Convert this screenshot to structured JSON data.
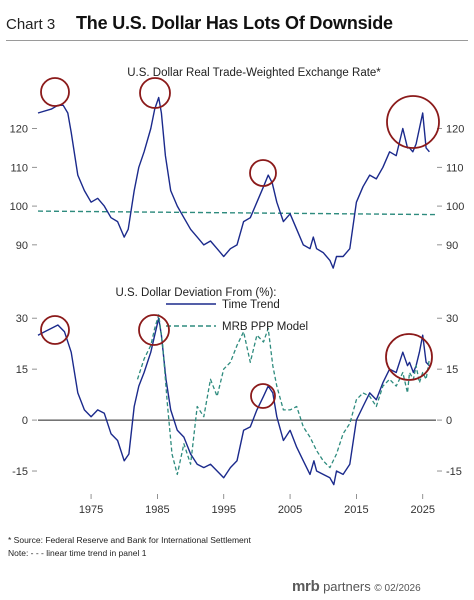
{
  "header": {
    "chart_number": "Chart 3",
    "title": "The U.S. Dollar Has Lots Of Downside"
  },
  "footer": {
    "source": "* Source: Federal Reserve and Bank for International Settlement",
    "note": "Note: - - - linear time trend in panel 1",
    "brand_main": "mrb",
    "brand_sub": "partners",
    "brand_date": "© 02/2026"
  },
  "colors": {
    "series_main": "#1b2a8c",
    "trend_teal": "#2e8b7e",
    "highlight_circle": "#8b1a1a",
    "zero_line": "#222222"
  },
  "chart_data": [
    {
      "type": "line",
      "title": "U.S. Dollar Real Trade-Weighted Exchange Rate*",
      "xlim": [
        1967,
        2027
      ],
      "ylim": [
        83,
        132
      ],
      "yticks": [
        90,
        100,
        110,
        120
      ],
      "y_tick_labels": [
        "90",
        "100",
        "110",
        "120"
      ],
      "legend": "none",
      "annotations": [
        "circle",
        "circle",
        "circle",
        "circle"
      ],
      "series": [
        {
          "x": [
            1967,
            1969,
            1970,
            1970.8,
            1971.5,
            1972,
            1973,
            1974,
            1975,
            1976,
            1977,
            1978,
            1979,
            1980,
            1980.6,
            1981.5,
            1982.2,
            1983,
            1984,
            1984.6,
            1985.2,
            1985.6,
            1986.2,
            1987,
            1988,
            1989,
            1990,
            1991,
            1992,
            1993,
            1994,
            1995,
            1996,
            1997,
            1998,
            1999,
            2000,
            2001,
            2001.7,
            2002.3,
            2003,
            2004,
            2005,
            2006,
            2007,
            2008,
            2008.5,
            2009,
            2010,
            2011,
            2011.5,
            2012,
            2013,
            2014,
            2015,
            2016,
            2017,
            2018,
            2019,
            2020,
            2021,
            2022,
            2022.7,
            2023,
            2023.5,
            2024,
            2024.5,
            2025,
            2025.5,
            2026
          ],
          "values": [
            124,
            125,
            126,
            126,
            124,
            119,
            108,
            104,
            101,
            102,
            100,
            97,
            96,
            92,
            94,
            104,
            110,
            114,
            120,
            125,
            128,
            124,
            113,
            104,
            100,
            97,
            94,
            92,
            90,
            91,
            89,
            87,
            89,
            90,
            96,
            97,
            101,
            105,
            108,
            106,
            101,
            96,
            98,
            94,
            90,
            89,
            92,
            89,
            88,
            86,
            84,
            87,
            87,
            89,
            101,
            105,
            108,
            107,
            110,
            114,
            113,
            120,
            115,
            115,
            114,
            116,
            120,
            124,
            115,
            114
          ]
        }
      ],
      "trend": {
        "x": [
          1967,
          2027
        ],
        "values": [
          98.7,
          97.8
        ]
      }
    },
    {
      "type": "line",
      "title": "U.S. Dollar Deviation From (%):",
      "xlim": [
        1967,
        2027
      ],
      "ylim": [
        -20,
        33
      ],
      "yticks": [
        -15,
        0,
        15,
        30
      ],
      "y_tick_labels": [
        "-15",
        "0",
        "15",
        "30"
      ],
      "x_tick_values": [
        1975,
        1985,
        1995,
        2005,
        2015,
        2025
      ],
      "x_tick_labels": [
        "1975",
        "1985",
        "1995",
        "2005",
        "2015",
        "2025"
      ],
      "legend": "top-right",
      "annotations": [
        "circle",
        "circle",
        "circle",
        "circle"
      ],
      "series": [
        {
          "name": "Time Trend",
          "x": [
            1967,
            1968,
            1969,
            1970,
            1971,
            1972,
            1973,
            1974,
            1975,
            1976,
            1977,
            1978,
            1979,
            1980,
            1980.7,
            1981.5,
            1982.2,
            1983,
            1984,
            1984.6,
            1985.2,
            1985.6,
            1986.3,
            1987,
            1988,
            1989,
            1990,
            1991,
            1992,
            1993,
            1994,
            1995,
            1996,
            1997,
            1998,
            1999,
            2000,
            2001,
            2001.7,
            2002.4,
            2003,
            2004,
            2005,
            2006,
            2007,
            2008,
            2008.6,
            2009,
            2010,
            2011,
            2011.6,
            2012,
            2013,
            2014,
            2015,
            2016,
            2017,
            2018,
            2019,
            2020,
            2021,
            2022,
            2022.7,
            2023,
            2023.6,
            2024,
            2024.5,
            2025,
            2025.5,
            2026
          ],
          "values": [
            25,
            26,
            27,
            28,
            26,
            20,
            8,
            3,
            1,
            3,
            2,
            -4,
            -6,
            -12,
            -10,
            4,
            10,
            14,
            20,
            25,
            30,
            25,
            12,
            3,
            -3,
            -5,
            -10,
            -13,
            -14,
            -13,
            -15,
            -17,
            -14,
            -12,
            -3,
            -2,
            3,
            7,
            10,
            8,
            1,
            -6,
            -3,
            -8,
            -12,
            -16,
            -12,
            -15,
            -16,
            -17,
            -19,
            -15,
            -16,
            -13,
            0,
            4,
            8,
            6,
            11,
            15,
            14,
            20,
            16,
            17,
            14,
            16,
            20,
            25,
            17,
            16
          ]
        },
        {
          "name": "MRB PPP Model",
          "x": [
            1982,
            1983,
            1984,
            1984.6,
            1985.2,
            1985.8,
            1986.5,
            1987.2,
            1988,
            1989,
            1990,
            1991,
            1992,
            1993,
            1994,
            1995,
            1996,
            1997,
            1998,
            1999,
            2000,
            2001,
            2001.7,
            2002.4,
            2003,
            2004,
            2005,
            2006,
            2007,
            2008,
            2009,
            2010,
            2011,
            2012,
            2013,
            2014,
            2015,
            2016,
            2017,
            2018,
            2019,
            2020,
            2021,
            2022,
            2022.7,
            2023,
            2023.6,
            2024,
            2024.5,
            2025,
            2025.5,
            2026
          ],
          "values": [
            12,
            18,
            22,
            27,
            31,
            22,
            5,
            -10,
            -16,
            -7,
            -13,
            4,
            1,
            12,
            7,
            15,
            17,
            22,
            26,
            17,
            25,
            23,
            27,
            16,
            10,
            3,
            3,
            4,
            -2,
            -5,
            -9,
            -12,
            -14,
            -10,
            -4,
            -1,
            6,
            8,
            7,
            4,
            10,
            12,
            10,
            14,
            8,
            14,
            12,
            16,
            11,
            14,
            12,
            18
          ]
        }
      ]
    }
  ]
}
